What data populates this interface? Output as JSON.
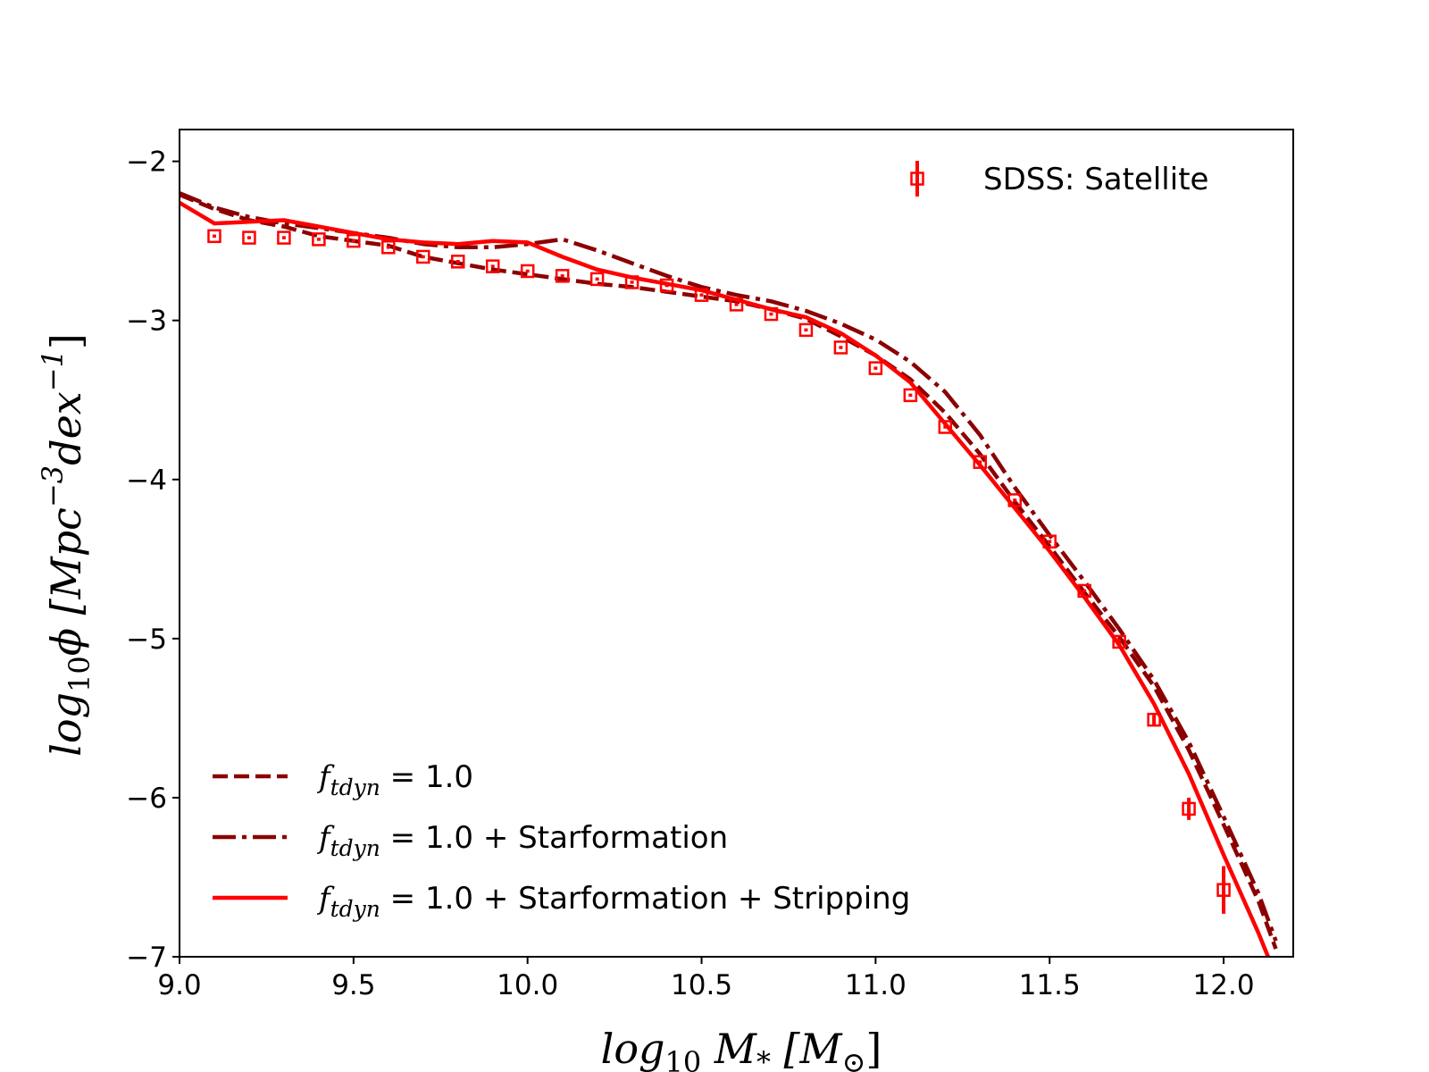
{
  "chart_data": {
    "type": "line",
    "title": "",
    "xlabel": {
      "base": "log",
      "sub": "10",
      "rest": " M",
      "star": "*",
      "unit_open": " [M",
      "unit_sub": "⊙",
      "unit_close": "]"
    },
    "ylabel": {
      "base": "log",
      "sub": "10",
      "phi": "ϕ",
      "unit1": " [Mpc",
      "exp1": "−3",
      "unit2": "dex",
      "exp2": "−1",
      "close": "]"
    },
    "xlim": [
      9.0,
      12.2
    ],
    "ylim": [
      -7.0,
      -1.8
    ],
    "xticks": [
      9.0,
      9.5,
      10.0,
      10.5,
      11.0,
      11.5,
      12.0
    ],
    "xtick_labels": [
      "9.0",
      "9.5",
      "10.0",
      "10.5",
      "11.0",
      "11.5",
      "12.0"
    ],
    "yticks": [
      -2,
      -3,
      -4,
      -5,
      -6,
      -7
    ],
    "ytick_labels": [
      "−2",
      "−3",
      "−4",
      "−5",
      "−6",
      "−7"
    ],
    "grid": false,
    "series": [
      {
        "name_math": "f",
        "name_sub": "tdyn",
        "name_rest": " = 1.0",
        "style": "dashed",
        "color": "#8b0000",
        "x": [
          9.0,
          9.1,
          9.2,
          9.3,
          9.4,
          9.5,
          9.6,
          9.7,
          9.8,
          9.9,
          10.0,
          10.1,
          10.2,
          10.3,
          10.4,
          10.5,
          10.6,
          10.7,
          10.8,
          10.9,
          11.0,
          11.1,
          11.2,
          11.3,
          11.4,
          11.5,
          11.6,
          11.7,
          11.8,
          11.9,
          12.0,
          12.1,
          12.15
        ],
        "y": [
          -2.21,
          -2.3,
          -2.37,
          -2.41,
          -2.47,
          -2.5,
          -2.53,
          -2.6,
          -2.64,
          -2.68,
          -2.71,
          -2.74,
          -2.77,
          -2.79,
          -2.82,
          -2.85,
          -2.88,
          -2.93,
          -2.99,
          -3.1,
          -3.22,
          -3.37,
          -3.58,
          -3.84,
          -4.14,
          -4.42,
          -4.71,
          -4.99,
          -5.3,
          -5.7,
          -6.17,
          -6.65,
          -6.95
        ]
      },
      {
        "name_math": "f",
        "name_sub": "tdyn",
        "name_rest": " = 1.0 + Starformation",
        "style": "dashdot",
        "color": "#8b0000",
        "x": [
          9.0,
          9.1,
          9.2,
          9.3,
          9.4,
          9.5,
          9.6,
          9.7,
          9.8,
          9.9,
          10.0,
          10.1,
          10.2,
          10.3,
          10.4,
          10.5,
          10.6,
          10.7,
          10.8,
          10.9,
          11.0,
          11.1,
          11.2,
          11.3,
          11.4,
          11.5,
          11.6,
          11.7,
          11.8,
          11.9,
          12.0,
          12.1,
          12.15
        ],
        "y": [
          -2.2,
          -2.29,
          -2.35,
          -2.39,
          -2.42,
          -2.45,
          -2.48,
          -2.52,
          -2.54,
          -2.54,
          -2.52,
          -2.49,
          -2.56,
          -2.64,
          -2.72,
          -2.79,
          -2.84,
          -2.88,
          -2.94,
          -3.02,
          -3.12,
          -3.26,
          -3.45,
          -3.72,
          -4.05,
          -4.35,
          -4.64,
          -4.94,
          -5.26,
          -5.65,
          -6.12,
          -6.6,
          -6.9
        ]
      },
      {
        "name_math": "f",
        "name_sub": "tdyn",
        "name_rest": " = 1.0 + Starformation + Stripping",
        "style": "solid",
        "color": "#ff0000",
        "x": [
          9.0,
          9.1,
          9.2,
          9.3,
          9.4,
          9.5,
          9.6,
          9.7,
          9.8,
          9.9,
          10.0,
          10.1,
          10.2,
          10.3,
          10.4,
          10.5,
          10.6,
          10.7,
          10.8,
          10.9,
          11.0,
          11.1,
          11.2,
          11.3,
          11.4,
          11.5,
          11.6,
          11.7,
          11.8,
          11.9,
          12.0,
          12.1,
          12.15
        ],
        "y": [
          -2.26,
          -2.39,
          -2.38,
          -2.37,
          -2.41,
          -2.45,
          -2.49,
          -2.51,
          -2.52,
          -2.5,
          -2.51,
          -2.6,
          -2.68,
          -2.73,
          -2.77,
          -2.81,
          -2.87,
          -2.93,
          -2.98,
          -3.08,
          -3.22,
          -3.39,
          -3.65,
          -3.91,
          -4.18,
          -4.45,
          -4.74,
          -5.04,
          -5.41,
          -5.85,
          -6.36,
          -6.85,
          -7.12
        ]
      }
    ],
    "observations": {
      "name": "SDSS: Satellite",
      "color": "#ff0000",
      "marker": "square",
      "x": [
        9.1,
        9.2,
        9.3,
        9.4,
        9.5,
        9.6,
        9.7,
        9.8,
        9.9,
        10.0,
        10.1,
        10.2,
        10.3,
        10.4,
        10.5,
        10.6,
        10.7,
        10.8,
        10.9,
        11.0,
        11.1,
        11.2,
        11.3,
        11.4,
        11.5,
        11.6,
        11.7,
        11.8,
        11.9,
        12.0
      ],
      "y": [
        -2.47,
        -2.48,
        -2.48,
        -2.49,
        -2.5,
        -2.54,
        -2.6,
        -2.63,
        -2.66,
        -2.69,
        -2.72,
        -2.74,
        -2.76,
        -2.78,
        -2.84,
        -2.9,
        -2.96,
        -3.06,
        -3.17,
        -3.3,
        -3.47,
        -3.67,
        -3.89,
        -4.13,
        -4.39,
        -4.7,
        -5.02,
        -5.51,
        -6.07,
        -6.58
      ],
      "yerr": [
        0.01,
        0.01,
        0.01,
        0.01,
        0.01,
        0.01,
        0.01,
        0.01,
        0.01,
        0.01,
        0.01,
        0.01,
        0.01,
        0.01,
        0.01,
        0.01,
        0.01,
        0.01,
        0.01,
        0.01,
        0.01,
        0.01,
        0.01,
        0.01,
        0.01,
        0.01,
        0.02,
        0.03,
        0.07,
        0.15
      ]
    },
    "legend_obs_placement": "upper-right",
    "legend_models_placement": "lower-left"
  }
}
